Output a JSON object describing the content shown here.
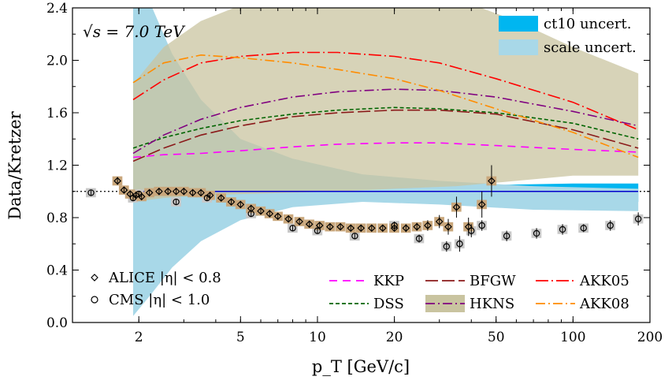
{
  "chart_data": {
    "type": "scatter",
    "energy_label": "√s = 7.0 TeV",
    "xlabel": "p_T [GeV/c]",
    "ylabel": "Data/Kretzer",
    "xscale": "log",
    "xlim": [
      1.1,
      200
    ],
    "ylim": [
      0,
      2.4
    ],
    "grid": false,
    "x_ticks": [
      {
        "value": 2,
        "label": "2"
      },
      {
        "value": 5,
        "label": "5"
      },
      {
        "value": 10,
        "label": "10"
      },
      {
        "value": 20,
        "label": "20"
      },
      {
        "value": 50,
        "label": "50"
      },
      {
        "value": 100,
        "label": "100"
      },
      {
        "value": 200,
        "label": "200"
      }
    ],
    "y_ticks": [
      {
        "value": 0,
        "label": "0.0"
      },
      {
        "value": 0.4,
        "label": "0.4"
      },
      {
        "value": 0.8,
        "label": "0.8"
      },
      {
        "value": 1.2,
        "label": "1.2"
      },
      {
        "value": 1.6,
        "label": "1.6"
      },
      {
        "value": 2.0,
        "label": "2.0"
      },
      {
        "value": 2.4,
        "label": "2.4"
      }
    ],
    "reference_line": 1.0,
    "bands": [
      {
        "name": "ct10 uncert.",
        "color": "#00b6f0",
        "x": [
          1.9,
          2.5,
          4,
          8,
          20,
          50,
          100,
          180
        ],
        "lo": [
          0.88,
          0.92,
          0.95,
          0.95,
          0.93,
          0.92,
          0.92,
          0.92
        ],
        "hi": [
          1.08,
          1.06,
          1.05,
          1.05,
          1.05,
          1.05,
          1.06,
          1.06
        ]
      },
      {
        "name": "scale uncert.",
        "color": "#a8d8e8",
        "x": [
          1.9,
          2.2,
          2.7,
          3.5,
          5,
          8,
          15,
          30,
          70,
          180
        ],
        "lo": [
          0.05,
          0.2,
          0.42,
          0.62,
          0.78,
          0.88,
          0.92,
          0.9,
          0.86,
          0.85
        ],
        "hi": [
          2.45,
          2.45,
          2.05,
          1.7,
          1.4,
          1.25,
          1.13,
          1.08,
          1.04,
          1.02
        ]
      },
      {
        "name": "HKNS band",
        "color": "#c9c4a0",
        "x": [
          1.9,
          2.5,
          3.5,
          5,
          8,
          12,
          20,
          35,
          60,
          100,
          180
        ],
        "lo": [
          0.92,
          0.95,
          0.97,
          0.98,
          0.99,
          1.0,
          1.02,
          1.04,
          1.08,
          1.12,
          1.12
        ],
        "hi": [
          1.82,
          2.1,
          2.3,
          2.42,
          2.5,
          2.55,
          2.55,
          2.47,
          2.3,
          2.1,
          1.9
        ]
      }
    ],
    "series": [
      {
        "name": "KKP",
        "color": "#ff00ff",
        "dash": "10 7",
        "x": [
          1.9,
          2.5,
          3.5,
          5,
          8,
          12,
          20,
          30,
          50,
          100,
          180
        ],
        "y": [
          1.26,
          1.28,
          1.29,
          1.31,
          1.34,
          1.36,
          1.37,
          1.37,
          1.35,
          1.32,
          1.3
        ]
      },
      {
        "name": "DSS",
        "color": "#006400",
        "dash": "5 3",
        "x": [
          1.9,
          2.5,
          3.5,
          5,
          8,
          12,
          20,
          30,
          50,
          100,
          180
        ],
        "y": [
          1.33,
          1.41,
          1.48,
          1.54,
          1.59,
          1.62,
          1.64,
          1.63,
          1.6,
          1.52,
          1.4
        ]
      },
      {
        "name": "BFGW",
        "color": "#8b1a1a",
        "dash": "16 5",
        "x": [
          1.9,
          2.5,
          3.5,
          5,
          8,
          12,
          20,
          30,
          50,
          100,
          180
        ],
        "y": [
          1.23,
          1.33,
          1.43,
          1.5,
          1.57,
          1.6,
          1.62,
          1.62,
          1.59,
          1.47,
          1.33
        ]
      },
      {
        "name": "HKNS",
        "color": "#800080",
        "dash": "12 4 2 4",
        "x": [
          1.9,
          2.5,
          3.5,
          5,
          8,
          12,
          20,
          30,
          50,
          100,
          180
        ],
        "y": [
          1.29,
          1.43,
          1.55,
          1.64,
          1.72,
          1.76,
          1.78,
          1.77,
          1.72,
          1.61,
          1.5
        ]
      },
      {
        "name": "AKK05",
        "color": "#ff0000",
        "dash": "16 4 2 4",
        "x": [
          1.9,
          2.5,
          3.5,
          5,
          8,
          12,
          20,
          30,
          50,
          100,
          180
        ],
        "y": [
          1.7,
          1.85,
          1.98,
          2.03,
          2.06,
          2.06,
          2.03,
          1.98,
          1.86,
          1.68,
          1.47
        ]
      },
      {
        "name": "AKK08",
        "color": "#ff8c00",
        "dash": "12 4 2 4",
        "x": [
          1.9,
          2.5,
          3.5,
          5,
          8,
          12,
          20,
          30,
          50,
          100,
          180
        ],
        "y": [
          1.83,
          1.98,
          2.04,
          2.02,
          1.98,
          1.93,
          1.86,
          1.77,
          1.63,
          1.45,
          1.26
        ]
      }
    ],
    "alice": {
      "name": "ALICE |η| < 0.8",
      "syst_color": "#c9a77c",
      "points": [
        {
          "x": 1.65,
          "y": 1.08,
          "err": 0.03
        },
        {
          "x": 1.75,
          "y": 1.01,
          "err": 0.02
        },
        {
          "x": 1.85,
          "y": 0.98,
          "err": 0.02
        },
        {
          "x": 1.95,
          "y": 0.97,
          "err": 0.02
        },
        {
          "x": 2.05,
          "y": 0.96,
          "err": 0.02
        },
        {
          "x": 2.2,
          "y": 0.99,
          "err": 0.02
        },
        {
          "x": 2.4,
          "y": 1.0,
          "err": 0.02
        },
        {
          "x": 2.6,
          "y": 1.0,
          "err": 0.02
        },
        {
          "x": 2.8,
          "y": 1.0,
          "err": 0.02
        },
        {
          "x": 3.0,
          "y": 1.0,
          "err": 0.02
        },
        {
          "x": 3.25,
          "y": 0.99,
          "err": 0.02
        },
        {
          "x": 3.5,
          "y": 0.99,
          "err": 0.02
        },
        {
          "x": 3.8,
          "y": 0.97,
          "err": 0.02
        },
        {
          "x": 4.2,
          "y": 0.95,
          "err": 0.02
        },
        {
          "x": 4.6,
          "y": 0.92,
          "err": 0.02
        },
        {
          "x": 5.0,
          "y": 0.9,
          "err": 0.02
        },
        {
          "x": 5.5,
          "y": 0.87,
          "err": 0.02
        },
        {
          "x": 6.0,
          "y": 0.85,
          "err": 0.02
        },
        {
          "x": 6.5,
          "y": 0.83,
          "err": 0.02
        },
        {
          "x": 7.0,
          "y": 0.81,
          "err": 0.02
        },
        {
          "x": 7.7,
          "y": 0.79,
          "err": 0.02
        },
        {
          "x": 8.5,
          "y": 0.77,
          "err": 0.02
        },
        {
          "x": 9.3,
          "y": 0.75,
          "err": 0.02
        },
        {
          "x": 10.2,
          "y": 0.74,
          "err": 0.02
        },
        {
          "x": 11.2,
          "y": 0.73,
          "err": 0.02
        },
        {
          "x": 12.3,
          "y": 0.73,
          "err": 0.02
        },
        {
          "x": 13.5,
          "y": 0.72,
          "err": 0.02
        },
        {
          "x": 14.8,
          "y": 0.72,
          "err": 0.02
        },
        {
          "x": 16.3,
          "y": 0.72,
          "err": 0.02
        },
        {
          "x": 18.0,
          "y": 0.72,
          "err": 0.02
        },
        {
          "x": 20.0,
          "y": 0.72,
          "err": 0.02
        },
        {
          "x": 22.2,
          "y": 0.72,
          "err": 0.03
        },
        {
          "x": 24.5,
          "y": 0.73,
          "err": 0.03
        },
        {
          "x": 27.0,
          "y": 0.74,
          "err": 0.04
        },
        {
          "x": 30.0,
          "y": 0.77,
          "err": 0.05
        },
        {
          "x": 32.5,
          "y": 0.73,
          "err": 0.06
        },
        {
          "x": 35.0,
          "y": 0.88,
          "err": 0.08
        },
        {
          "x": 39.0,
          "y": 0.73,
          "err": 0.07
        },
        {
          "x": 44.0,
          "y": 0.9,
          "err": 0.1
        },
        {
          "x": 48.0,
          "y": 1.08,
          "err": 0.12
        }
      ]
    },
    "cms": {
      "name": "CMS |η| < 1.0",
      "syst_color": "#c8c8c8",
      "points": [
        {
          "x": 1.3,
          "y": 0.99,
          "err": 0.02
        },
        {
          "x": 1.9,
          "y": 0.95,
          "err": 0.02
        },
        {
          "x": 2.0,
          "y": 0.98,
          "err": 0.02
        },
        {
          "x": 2.8,
          "y": 0.92,
          "err": 0.02
        },
        {
          "x": 3.7,
          "y": 0.95,
          "err": 0.02
        },
        {
          "x": 5.5,
          "y": 0.83,
          "err": 0.02
        },
        {
          "x": 8.0,
          "y": 0.72,
          "err": 0.02
        },
        {
          "x": 10.0,
          "y": 0.7,
          "err": 0.02
        },
        {
          "x": 14.0,
          "y": 0.66,
          "err": 0.02
        },
        {
          "x": 20.0,
          "y": 0.74,
          "err": 0.03
        },
        {
          "x": 25.0,
          "y": 0.64,
          "err": 0.03
        },
        {
          "x": 32.0,
          "y": 0.58,
          "err": 0.04
        },
        {
          "x": 36.0,
          "y": 0.6,
          "err": 0.06
        },
        {
          "x": 40.0,
          "y": 0.7,
          "err": 0.05
        },
        {
          "x": 44.0,
          "y": 0.74,
          "err": 0.04
        },
        {
          "x": 55.0,
          "y": 0.66,
          "err": 0.04
        },
        {
          "x": 72.0,
          "y": 0.68,
          "err": 0.04
        },
        {
          "x": 91.0,
          "y": 0.71,
          "err": 0.04
        },
        {
          "x": 110.0,
          "y": 0.72,
          "err": 0.03
        },
        {
          "x": 140.0,
          "y": 0.74,
          "err": 0.04
        },
        {
          "x": 180.0,
          "y": 0.79,
          "err": 0.05
        }
      ]
    },
    "legend": {
      "bands": [
        "ct10 uncert.",
        "scale uncert."
      ],
      "markers": [
        "ALICE |η| < 0.8",
        "CMS |η| < 1.0"
      ],
      "lines": [
        "KKP",
        "BFGW",
        "AKK05",
        "DSS",
        "HKNS",
        "AKK08"
      ]
    }
  }
}
